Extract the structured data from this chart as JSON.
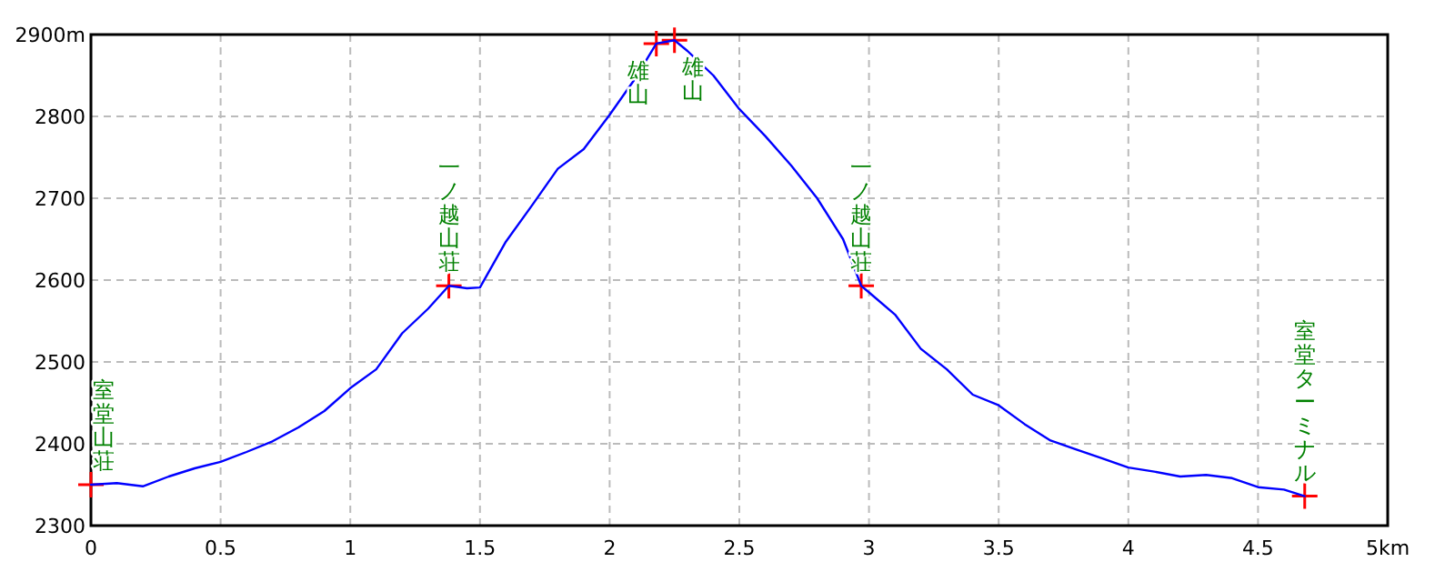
{
  "chart_data": {
    "type": "line",
    "xlim": [
      0,
      5
    ],
    "ylim": [
      2300,
      2900
    ],
    "xticks": [
      0,
      0.5,
      1,
      1.5,
      2,
      2.5,
      3,
      3.5,
      4,
      4.5,
      {
        "value": 5,
        "label": "5km"
      }
    ],
    "yticks": [
      {
        "value": 2300,
        "label": "2300"
      },
      {
        "value": 2400,
        "label": "2400"
      },
      {
        "value": 2500,
        "label": "2500"
      },
      {
        "value": 2600,
        "label": "2600"
      },
      {
        "value": 2700,
        "label": "2700"
      },
      {
        "value": 2800,
        "label": "2800"
      },
      {
        "value": 2900,
        "label": "2900m"
      }
    ],
    "grid": true,
    "line_style": "solid",
    "series": [
      {
        "type": "line",
        "color": "#0000ff",
        "x": [
          0,
          0.1,
          0.2,
          0.3,
          0.4,
          0.5,
          0.6,
          0.7,
          0.8,
          0.9,
          1,
          1.1,
          1.2,
          1.3,
          1.38,
          1.45,
          1.5,
          1.6,
          1.7,
          1.8,
          1.9,
          2,
          2.1,
          2.18,
          2.25,
          2.3,
          2.4,
          2.5,
          2.6,
          2.7,
          2.8,
          2.9,
          2.97,
          3,
          3.1,
          3.2,
          3.3,
          3.4,
          3.5,
          3.6,
          3.7,
          3.8,
          3.9,
          4,
          4.1,
          4.2,
          4.3,
          4.4,
          4.5,
          4.6,
          4.68
        ],
        "values": [
          2350,
          2352,
          2348,
          2360,
          2370,
          2378,
          2390,
          2403,
          2420,
          2440,
          2468,
          2491,
          2535,
          2565,
          2593,
          2590,
          2591,
          2647,
          2691,
          2736,
          2760,
          2802,
          2847,
          2889,
          2893,
          2880,
          2850,
          2809,
          2776,
          2740,
          2700,
          2650,
          2593,
          2585,
          2558,
          2516,
          2491,
          2460,
          2447,
          2424,
          2404,
          2393,
          2382,
          2371,
          2366,
          2360,
          2362,
          2358,
          2347,
          2344,
          2336
        ]
      },
      {
        "type": "scatter",
        "color": "#ff0000",
        "marker": "cross",
        "x": [
          0,
          1.38,
          2.18,
          2.25,
          2.97,
          4.68
        ],
        "values": [
          2350,
          2593,
          2889,
          2893,
          2593,
          2336
        ]
      }
    ],
    "annotations": [
      {
        "text": "室堂山荘",
        "x": 0,
        "y": 2350
      },
      {
        "text": "一ノ越山荘",
        "x": 1.38,
        "y": 2593
      },
      {
        "text": "雄山",
        "x": 2.18,
        "y": 2889
      },
      {
        "text": "雄山",
        "x": 2.25,
        "y": 2893
      },
      {
        "text": "一ノ越山荘",
        "x": 2.97,
        "y": 2593
      },
      {
        "text": "室堂ターミナル",
        "x": 4.68,
        "y": 2336
      }
    ]
  }
}
